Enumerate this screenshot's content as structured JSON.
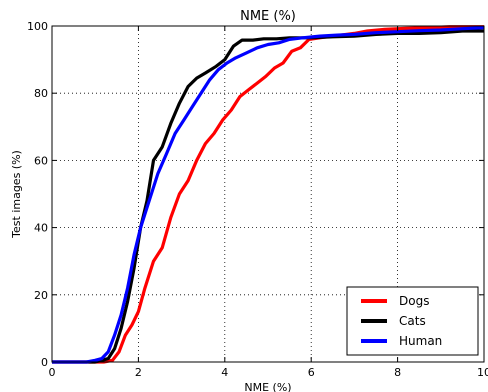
{
  "chart_data": {
    "type": "line",
    "title": "NME (%)",
    "xlabel": "NME (%)",
    "ylabel": "Test images (%)",
    "xlim": [
      0,
      10
    ],
    "ylim": [
      0,
      100
    ],
    "xticks": [
      0,
      2,
      4,
      6,
      8,
      10
    ],
    "yticks": [
      0,
      20,
      40,
      60,
      80,
      100
    ],
    "grid": true,
    "legend_position": "bottom-right",
    "series": [
      {
        "name": "Dogs",
        "color": "#ff0000",
        "points": [
          [
            0,
            0
          ],
          [
            1.0,
            0
          ],
          [
            1.2,
            0
          ],
          [
            1.4,
            0.5
          ],
          [
            1.55,
            3
          ],
          [
            1.7,
            8
          ],
          [
            1.85,
            11
          ],
          [
            2.0,
            15
          ],
          [
            2.15,
            22
          ],
          [
            2.35,
            30
          ],
          [
            2.55,
            34
          ],
          [
            2.75,
            43
          ],
          [
            2.95,
            50
          ],
          [
            3.15,
            54
          ],
          [
            3.35,
            60
          ],
          [
            3.55,
            65
          ],
          [
            3.75,
            68
          ],
          [
            3.95,
            72
          ],
          [
            4.15,
            75
          ],
          [
            4.35,
            79
          ],
          [
            4.55,
            81
          ],
          [
            4.75,
            83
          ],
          [
            4.95,
            85
          ],
          [
            5.15,
            87.5
          ],
          [
            5.35,
            89
          ],
          [
            5.55,
            92.5
          ],
          [
            5.75,
            93.5
          ],
          [
            5.95,
            96
          ],
          [
            6.2,
            96.5
          ],
          [
            6.5,
            97
          ],
          [
            6.8,
            97.5
          ],
          [
            7.0,
            97.8
          ],
          [
            7.3,
            98.5
          ],
          [
            7.7,
            99
          ],
          [
            8.2,
            99.3
          ],
          [
            8.7,
            99.5
          ],
          [
            9.2,
            99.8
          ],
          [
            10.0,
            99.8
          ]
        ]
      },
      {
        "name": "Cats",
        "color": "#000000",
        "points": [
          [
            0,
            0
          ],
          [
            1.0,
            0
          ],
          [
            1.15,
            0.5
          ],
          [
            1.3,
            1
          ],
          [
            1.45,
            4
          ],
          [
            1.6,
            10
          ],
          [
            1.75,
            18
          ],
          [
            1.9,
            28
          ],
          [
            2.05,
            40
          ],
          [
            2.2,
            48
          ],
          [
            2.35,
            60
          ],
          [
            2.55,
            64
          ],
          [
            2.75,
            71
          ],
          [
            2.95,
            77
          ],
          [
            3.15,
            82
          ],
          [
            3.35,
            84.5
          ],
          [
            3.55,
            86
          ],
          [
            3.8,
            88
          ],
          [
            4.0,
            90
          ],
          [
            4.2,
            94
          ],
          [
            4.4,
            95.8
          ],
          [
            4.65,
            95.8
          ],
          [
            4.9,
            96.2
          ],
          [
            5.2,
            96.2
          ],
          [
            5.5,
            96.5
          ],
          [
            6.0,
            96.5
          ],
          [
            6.5,
            96.8
          ],
          [
            7.0,
            97
          ],
          [
            7.5,
            97.5
          ],
          [
            8.0,
            97.8
          ],
          [
            8.5,
            97.8
          ],
          [
            9.0,
            98
          ],
          [
            9.5,
            98.5
          ],
          [
            10.0,
            98.5
          ]
        ]
      },
      {
        "name": "Human",
        "color": "#0000ff",
        "points": [
          [
            0,
            0
          ],
          [
            0.8,
            0
          ],
          [
            1.0,
            0.5
          ],
          [
            1.15,
            1
          ],
          [
            1.3,
            3
          ],
          [
            1.45,
            8
          ],
          [
            1.6,
            14
          ],
          [
            1.75,
            22
          ],
          [
            1.9,
            32
          ],
          [
            2.05,
            40
          ],
          [
            2.25,
            48
          ],
          [
            2.45,
            56
          ],
          [
            2.65,
            62
          ],
          [
            2.85,
            68
          ],
          [
            3.05,
            72
          ],
          [
            3.25,
            76
          ],
          [
            3.45,
            80
          ],
          [
            3.65,
            84
          ],
          [
            3.85,
            87
          ],
          [
            4.05,
            89
          ],
          [
            4.25,
            90.5
          ],
          [
            4.5,
            92
          ],
          [
            4.75,
            93.5
          ],
          [
            5.0,
            94.5
          ],
          [
            5.25,
            95
          ],
          [
            5.5,
            96
          ],
          [
            5.8,
            96.5
          ],
          [
            6.2,
            97
          ],
          [
            6.6,
            97.3
          ],
          [
            7.0,
            97.5
          ],
          [
            7.5,
            98
          ],
          [
            8.0,
            98.3
          ],
          [
            8.5,
            98.6
          ],
          [
            9.0,
            98.8
          ],
          [
            9.5,
            99.2
          ],
          [
            10.0,
            99.5
          ]
        ]
      }
    ]
  }
}
